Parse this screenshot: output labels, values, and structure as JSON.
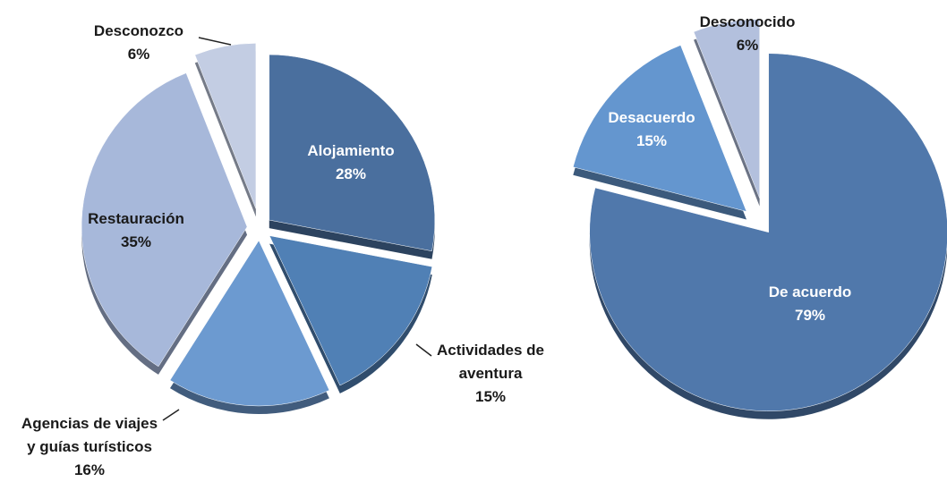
{
  "chart_data": [
    {
      "type": "pie",
      "categories": [
        "Alojamiento",
        "Actividades de\naventura",
        "Agencias de viajes\ny guías turísticos",
        "Restauración",
        "Desconozco"
      ],
      "values": [
        28,
        15,
        16,
        35,
        6
      ],
      "value_labels": [
        "28%",
        "15%",
        "16%",
        "35%",
        "6%"
      ],
      "colors": [
        "#4a6f9e",
        "#5080b5",
        "#6c9ad0",
        "#a7b8da",
        "#c3cde3"
      ]
    },
    {
      "type": "pie",
      "categories": [
        "De acuerdo",
        "Desacuerdo",
        "Desconocido"
      ],
      "values": [
        79,
        15,
        6
      ],
      "value_labels": [
        "79%",
        "15%",
        "6%"
      ],
      "colors": [
        "#5078ab",
        "#6496cf",
        "#b3c0dd"
      ]
    }
  ]
}
